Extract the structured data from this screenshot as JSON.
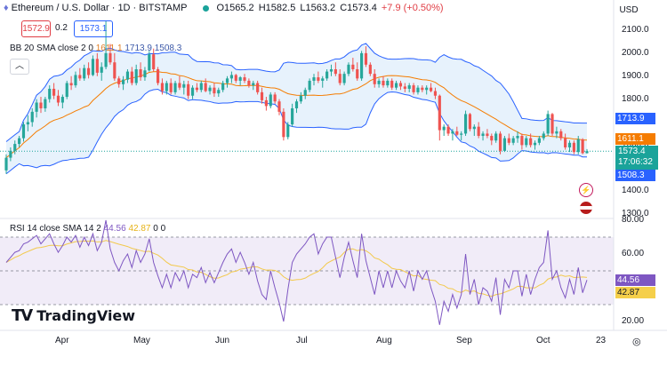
{
  "header": {
    "symbol": "Ethereum / U.S. Dollar · 1D · BITSTAMP",
    "open": "O1565.2",
    "high": "H1582.5",
    "low": "L1563.2",
    "close": "C1573.4",
    "change": "+7.9 (+0.50%)"
  },
  "trade": {
    "sell": "1572.9",
    "spread": "0.2",
    "buy": "1573.1"
  },
  "bb_legend": {
    "label": "BB 20 SMA close 2 0",
    "basis": "1611.1",
    "upper": "1713.9",
    "lower": "1508.3"
  },
  "collapse_icon": "chevron-up-icon",
  "rsi_legend": {
    "label": "RSI 14 close SMA 14 2",
    "rsi": "44.56",
    "sma": "42.87",
    "tail": "0 0"
  },
  "currency": "USD",
  "price_axis": [
    "2100.0",
    "2000.0",
    "1900.0",
    "1800.0",
    "1700.0",
    "1600.0",
    "1500.0",
    "1400.0",
    "1300.0"
  ],
  "rsi_axis": [
    "80.00",
    "60.00",
    "20.00"
  ],
  "price_tags": {
    "upper": "1713.9",
    "basis": "1611.1",
    "current": "1573.4",
    "countdown": "17:06:32",
    "lower": "1508.3"
  },
  "rsi_tags": {
    "rsi": "44.56",
    "sma": "42.87"
  },
  "months": [
    "Apr",
    "May",
    "Jun",
    "Jul",
    "Aug",
    "Sep",
    "Oct",
    "23"
  ],
  "logo": {
    "text": "TradingView"
  },
  "colors": {
    "up": "#26a69a",
    "down": "#ef5350",
    "bb_basis": "#f57c00",
    "bb_band": "#2962ff",
    "bb_fill": "#e3f0fb",
    "rsi": "#7e57c2",
    "rsi_sma": "#f2c94c",
    "rsi_zone": "#ede7f6"
  },
  "chart_data": [
    {
      "type": "candlestick",
      "series": [
        {
          "name": "Ethereum / U.S. Dollar",
          "ohlc": [
            [
              1490,
              1560,
              1475,
              1545
            ],
            [
              1545,
              1590,
              1530,
              1575
            ],
            [
              1575,
              1620,
              1560,
              1605
            ],
            [
              1605,
              1640,
              1590,
              1630
            ],
            [
              1630,
              1700,
              1615,
              1690
            ],
            [
              1690,
              1730,
              1660,
              1700
            ],
            [
              1700,
              1760,
              1680,
              1745
            ],
            [
              1745,
              1800,
              1720,
              1785
            ],
            [
              1785,
              1810,
              1740,
              1760
            ],
            [
              1760,
              1810,
              1745,
              1800
            ],
            [
              1800,
              1860,
              1785,
              1845
            ],
            [
              1845,
              1870,
              1800,
              1815
            ],
            [
              1815,
              1840,
              1770,
              1785
            ],
            [
              1785,
              1820,
              1760,
              1810
            ],
            [
              1810,
              1880,
              1800,
              1870
            ],
            [
              1870,
              1900,
              1840,
              1860
            ],
            [
              1860,
              1920,
              1850,
              1905
            ],
            [
              1905,
              1935,
              1880,
              1890
            ],
            [
              1890,
              1950,
              1880,
              1935
            ],
            [
              1935,
              1960,
              1890,
              1905
            ],
            [
              1905,
              1990,
              1900,
              1975
            ],
            [
              1975,
              2000,
              1900,
              1915
            ],
            [
              1915,
              1960,
              1880,
              1940
            ],
            [
              1940,
              2140,
              1930,
              2000
            ],
            [
              2000,
              2040,
              1950,
              1960
            ],
            [
              1960,
              2000,
              1880,
              1890
            ],
            [
              1890,
              1900,
              1850,
              1865
            ],
            [
              1865,
              1900,
              1840,
              1885
            ],
            [
              1885,
              1930,
              1870,
              1920
            ],
            [
              1920,
              1940,
              1860,
              1870
            ],
            [
              1870,
              1950,
              1860,
              1930
            ],
            [
              1930,
              1960,
              1880,
              1895
            ],
            [
              1895,
              1940,
              1880,
              1925
            ],
            [
              1925,
              2010,
              1920,
              1995
            ],
            [
              1995,
              2020,
              1920,
              1930
            ],
            [
              1930,
              1940,
              1860,
              1870
            ],
            [
              1870,
              1890,
              1820,
              1835
            ],
            [
              1835,
              1880,
              1820,
              1870
            ],
            [
              1870,
              1890,
              1820,
              1830
            ],
            [
              1830,
              1880,
              1820,
              1870
            ],
            [
              1870,
              1900,
              1840,
              1850
            ],
            [
              1850,
              1880,
              1820,
              1865
            ],
            [
              1865,
              1880,
              1800,
              1815
            ],
            [
              1815,
              1860,
              1800,
              1850
            ],
            [
              1850,
              1870,
              1830,
              1840
            ],
            [
              1840,
              1880,
              1830,
              1870
            ],
            [
              1870,
              1890,
              1830,
              1835
            ],
            [
              1835,
              1860,
              1820,
              1850
            ],
            [
              1850,
              1870,
              1810,
              1825
            ],
            [
              1825,
              1850,
              1810,
              1840
            ],
            [
              1840,
              1880,
              1830,
              1870
            ],
            [
              1870,
              1900,
              1850,
              1890
            ],
            [
              1890,
              1920,
              1870,
              1905
            ],
            [
              1905,
              1910,
              1870,
              1880
            ],
            [
              1880,
              1900,
              1860,
              1895
            ],
            [
              1895,
              1910,
              1870,
              1880
            ],
            [
              1880,
              1890,
              1850,
              1860
            ],
            [
              1860,
              1880,
              1840,
              1870
            ],
            [
              1870,
              1880,
              1820,
              1830
            ],
            [
              1830,
              1850,
              1780,
              1795
            ],
            [
              1795,
              1810,
              1750,
              1770
            ],
            [
              1770,
              1830,
              1760,
              1820
            ],
            [
              1820,
              1830,
              1780,
              1790
            ],
            [
              1790,
              1800,
              1730,
              1745
            ],
            [
              1745,
              1760,
              1620,
              1635
            ],
            [
              1635,
              1700,
              1625,
              1690
            ],
            [
              1690,
              1780,
              1680,
              1760
            ],
            [
              1760,
              1800,
              1740,
              1790
            ],
            [
              1790,
              1830,
              1780,
              1815
            ],
            [
              1815,
              1850,
              1800,
              1840
            ],
            [
              1840,
              1890,
              1830,
              1880
            ],
            [
              1880,
              1910,
              1860,
              1895
            ],
            [
              1895,
              1920,
              1870,
              1880
            ],
            [
              1880,
              1900,
              1850,
              1890
            ],
            [
              1890,
              1930,
              1880,
              1920
            ],
            [
              1920,
              1950,
              1900,
              1930
            ],
            [
              1930,
              1960,
              1900,
              1910
            ],
            [
              1910,
              1930,
              1860,
              1870
            ],
            [
              1870,
              1920,
              1860,
              1910
            ],
            [
              1910,
              1960,
              1900,
              1950
            ],
            [
              1950,
              1980,
              1920,
              1930
            ],
            [
              1930,
              1960,
              1880,
              1890
            ],
            [
              1890,
              2010,
              1880,
              2000
            ],
            [
              2000,
              2030,
              1940,
              1950
            ],
            [
              1950,
              1960,
              1900,
              1910
            ],
            [
              1910,
              1930,
              1850,
              1865
            ],
            [
              1865,
              1890,
              1850,
              1880
            ],
            [
              1880,
              1900,
              1850,
              1860
            ],
            [
              1860,
              1890,
              1850,
              1880
            ],
            [
              1880,
              1890,
              1840,
              1850
            ],
            [
              1850,
              1880,
              1840,
              1870
            ],
            [
              1870,
              1880,
              1840,
              1855
            ],
            [
              1855,
              1870,
              1830,
              1845
            ],
            [
              1845,
              1870,
              1830,
              1860
            ],
            [
              1860,
              1870,
              1820,
              1830
            ],
            [
              1830,
              1860,
              1820,
              1850
            ],
            [
              1850,
              1860,
              1830,
              1840
            ],
            [
              1840,
              1860,
              1820,
              1850
            ],
            [
              1850,
              1870,
              1830,
              1835
            ],
            [
              1835,
              1850,
              1800,
              1815
            ],
            [
              1815,
              1820,
              1620,
              1665
            ],
            [
              1665,
              1690,
              1640,
              1680
            ],
            [
              1680,
              1690,
              1640,
              1650
            ],
            [
              1650,
              1670,
              1620,
              1660
            ],
            [
              1660,
              1680,
              1640,
              1645
            ],
            [
              1645,
              1660,
              1620,
              1650
            ],
            [
              1650,
              1750,
              1640,
              1735
            ],
            [
              1735,
              1740,
              1660,
              1670
            ],
            [
              1670,
              1690,
              1640,
              1680
            ],
            [
              1680,
              1700,
              1630,
              1640
            ],
            [
              1640,
              1660,
              1620,
              1650
            ],
            [
              1650,
              1670,
              1630,
              1640
            ],
            [
              1640,
              1650,
              1600,
              1620
            ],
            [
              1620,
              1660,
              1610,
              1650
            ],
            [
              1650,
              1660,
              1560,
              1575
            ],
            [
              1575,
              1640,
              1570,
              1630
            ],
            [
              1630,
              1650,
              1600,
              1610
            ],
            [
              1610,
              1640,
              1600,
              1630
            ],
            [
              1630,
              1660,
              1610,
              1640
            ],
            [
              1640,
              1650,
              1580,
              1600
            ],
            [
              1600,
              1640,
              1590,
              1630
            ],
            [
              1630,
              1650,
              1590,
              1600
            ],
            [
              1600,
              1620,
              1580,
              1610
            ],
            [
              1610,
              1640,
              1600,
              1630
            ],
            [
              1630,
              1660,
              1620,
              1650
            ],
            [
              1650,
              1750,
              1640,
              1735
            ],
            [
              1735,
              1740,
              1640,
              1650
            ],
            [
              1650,
              1680,
              1630,
              1660
            ],
            [
              1660,
              1670,
              1620,
              1630
            ],
            [
              1630,
              1650,
              1580,
              1590
            ],
            [
              1590,
              1620,
              1570,
              1610
            ],
            [
              1610,
              1620,
              1560,
              1570
            ],
            [
              1570,
              1640,
              1560,
              1625
            ],
            [
              1625,
              1630,
              1560,
              1565
            ],
            [
              1565,
              1582.5,
              1563.2,
              1573.4
            ]
          ]
        },
        {
          "name": "BB Upper",
          "values": [
            1508.3,
            1713.9
          ]
        },
        {
          "name": "BB Basis",
          "values": [
            1611.1
          ]
        },
        {
          "name": "BB Lower",
          "values": [
            1508.3
          ]
        }
      ],
      "ylim": [
        1300,
        2120
      ],
      "yticks": [
        1300,
        1400,
        1500,
        1600,
        1700,
        1800,
        1900,
        2000,
        2100
      ],
      "grid": false
    },
    {
      "type": "line",
      "series": [
        {
          "name": "RSI",
          "values": [
            55,
            58,
            61,
            62,
            66,
            67,
            69,
            71,
            66,
            69,
            72,
            66,
            61,
            65,
            70,
            67,
            71,
            64,
            70,
            65,
            72,
            62,
            67,
            80,
            63,
            55,
            50,
            56,
            60,
            52,
            62,
            55,
            60,
            69,
            55,
            47,
            40,
            48,
            40,
            49,
            44,
            50,
            40,
            48,
            46,
            52,
            43,
            49,
            43,
            49,
            55,
            60,
            63,
            55,
            61,
            55,
            48,
            55,
            44,
            36,
            33,
            50,
            40,
            31,
            20,
            39,
            55,
            60,
            63,
            66,
            70,
            72,
            60,
            66,
            70,
            70,
            58,
            46,
            58,
            67,
            56,
            46,
            72,
            56,
            46,
            36,
            50,
            40,
            50,
            40,
            50,
            44,
            40,
            50,
            38,
            50,
            45,
            50,
            40,
            32,
            18,
            32,
            26,
            36,
            28,
            36,
            60,
            36,
            45,
            30,
            40,
            38,
            32,
            46,
            24,
            45,
            40,
            50,
            50,
            35,
            48,
            36,
            45,
            52,
            55,
            74,
            45,
            50,
            40,
            34,
            45,
            36,
            52,
            37,
            44.56
          ]
        },
        {
          "name": "RSI SMA",
          "values": [
            42.87
          ]
        }
      ],
      "ylim": [
        10,
        90
      ],
      "yticks": [
        20,
        60,
        80
      ],
      "bands": [
        30,
        50,
        70
      ]
    }
  ]
}
